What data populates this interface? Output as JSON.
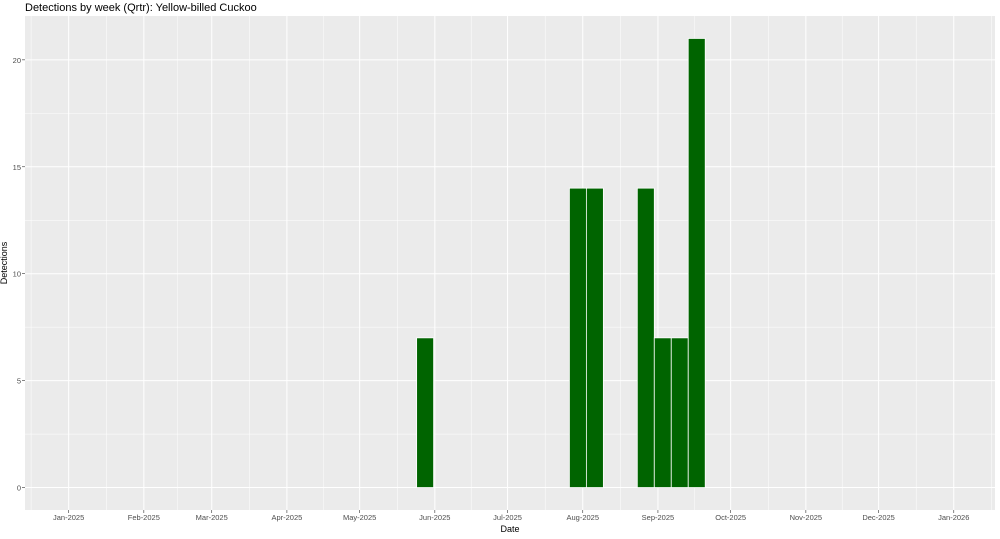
{
  "chart_data": {
    "type": "bar",
    "title": "Detections by week (Qrtr): Yellow-billed Cuckoo",
    "xlabel": "Date",
    "ylabel": "Detections",
    "x": [
      "2025-05-28",
      "2025-07-30",
      "2025-08-06",
      "2025-08-27",
      "2025-09-03",
      "2025-09-10",
      "2025-09-17"
    ],
    "values": [
      7,
      14,
      14,
      14,
      7,
      7,
      21
    ],
    "bar_width_days": 7,
    "xlim": [
      "2024-12-14",
      "2026-01-18"
    ],
    "ylim": [
      -1.05,
      22.05
    ],
    "x_ticks": [
      {
        "date": "2025-01-01",
        "label": "Jan-2025"
      },
      {
        "date": "2025-02-01",
        "label": "Feb-2025"
      },
      {
        "date": "2025-03-01",
        "label": "Mar-2025"
      },
      {
        "date": "2025-04-01",
        "label": "Apr-2025"
      },
      {
        "date": "2025-05-01",
        "label": "May-2025"
      },
      {
        "date": "2025-06-01",
        "label": "Jun-2025"
      },
      {
        "date": "2025-07-01",
        "label": "Jul-2025"
      },
      {
        "date": "2025-08-01",
        "label": "Aug-2025"
      },
      {
        "date": "2025-09-01",
        "label": "Sep-2025"
      },
      {
        "date": "2025-10-01",
        "label": "Oct-2025"
      },
      {
        "date": "2025-11-01",
        "label": "Nov-2025"
      },
      {
        "date": "2025-12-01",
        "label": "Dec-2025"
      },
      {
        "date": "2026-01-01",
        "label": "Jan-2026"
      }
    ],
    "y_ticks": [
      0,
      5,
      10,
      15,
      20
    ],
    "grid": true,
    "legend": "none",
    "colors": {
      "bar": "#006400",
      "panel": "#EBEBEB",
      "grid": "#FFFFFF"
    }
  }
}
